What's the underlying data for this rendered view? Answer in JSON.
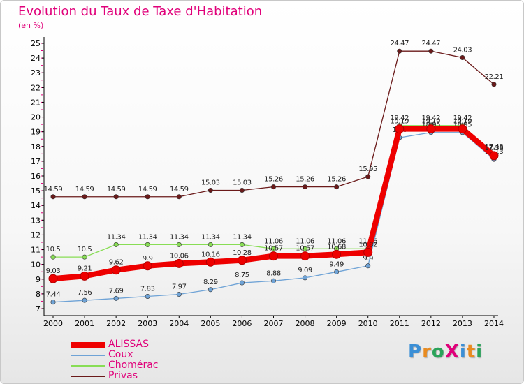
{
  "title": "Evolution du Taux de Taxe d'Habitation",
  "subtitle": "(en %)",
  "brand": {
    "text": "ProXiti",
    "letter_colors": [
      "#3b8fd6",
      "#e98b20",
      "#2aa35a",
      "#e0007a",
      "#3b8fd6",
      "#e98b20",
      "#2aa35a"
    ]
  },
  "colors": {
    "text": "#e0007a",
    "axis": "#000000"
  },
  "chart_data": {
    "type": "line",
    "title": "Evolution du Taux de Taxe d'Habitation",
    "ylabel": "(en %)",
    "xlabel": "",
    "x": [
      "2000",
      "2001",
      "2002",
      "2003",
      "2004",
      "2005",
      "2006",
      "2007",
      "2008",
      "2009",
      "2010",
      "2011",
      "2012",
      "2013",
      "2014"
    ],
    "ylim": [
      7,
      25
    ],
    "yticks": [
      "7",
      "8",
      "9",
      "10",
      "11",
      "12",
      "13",
      "14",
      "15",
      "16",
      "17",
      "18",
      "19",
      "20",
      "21",
      "22",
      "23",
      "24",
      "25"
    ],
    "grid": false,
    "legend_position": "bottom-left",
    "series": [
      {
        "name": "Privas",
        "color": "#6b1a1a",
        "values": [
          14.59,
          14.59,
          14.59,
          14.59,
          14.59,
          15.03,
          15.03,
          15.26,
          15.26,
          15.26,
          15.95,
          24.47,
          24.47,
          24.03,
          22.21
        ],
        "labels": [
          "14.59",
          "14.59",
          "14.59",
          "14.59",
          "14.59",
          "15.03",
          "15.03",
          "15.26",
          "15.26",
          "15.26",
          "15.95",
          "24.47",
          "24.47",
          "24.03",
          "22.21"
        ]
      },
      {
        "name": "Chomérac",
        "color": "#88dd55",
        "values": [
          10.5,
          10.5,
          11.34,
          11.34,
          11.34,
          11.34,
          11.34,
          11.06,
          11.06,
          11.06,
          11.06,
          19.42,
          19.42,
          19.42,
          17.48
        ],
        "labels": [
          "10.5",
          "10.5",
          "11.34",
          "11.34",
          "11.34",
          "11.34",
          "11.34",
          "11.06",
          "11.06",
          "11.06",
          "11.06",
          "19.42",
          "19.42",
          "19.42",
          "17.48"
        ]
      },
      {
        "name": "Coux",
        "color": "#6fa3d6",
        "values": [
          7.44,
          7.56,
          7.69,
          7.83,
          7.97,
          8.29,
          8.75,
          8.88,
          9.09,
          9.49,
          9.9,
          18.6,
          18.95,
          18.95,
          17.13
        ],
        "labels": [
          "7.44",
          "7.56",
          "7.69",
          "7.83",
          "7.97",
          "8.29",
          "8.75",
          "8.88",
          "9.09",
          "9.49",
          "9.9",
          "18.6",
          "18.95",
          "18.95",
          "17.13"
        ]
      },
      {
        "name": "ALISSAS",
        "color": "#ee0000",
        "values": [
          9.03,
          9.21,
          9.62,
          9.9,
          10.06,
          10.16,
          10.28,
          10.57,
          10.57,
          10.68,
          10.82,
          19.19,
          19.19,
          19.19,
          17.38
        ],
        "labels": [
          "9.03",
          "9.21",
          "9.62",
          "9.9",
          "10.06",
          "10.16",
          "10.28",
          "10.57",
          "10.57",
          "10.68",
          "10.82",
          "19.19",
          "19.19",
          "19.19",
          "17.38"
        ]
      }
    ]
  },
  "legend": [
    {
      "label": "ALISSAS",
      "color": "#ee0000",
      "weight": "thick"
    },
    {
      "label": "Coux",
      "color": "#6fa3d6",
      "weight": "thin"
    },
    {
      "label": "Chomérac",
      "color": "#88dd55",
      "weight": "thin"
    },
    {
      "label": "Privas",
      "color": "#6b1a1a",
      "weight": "thin"
    }
  ]
}
